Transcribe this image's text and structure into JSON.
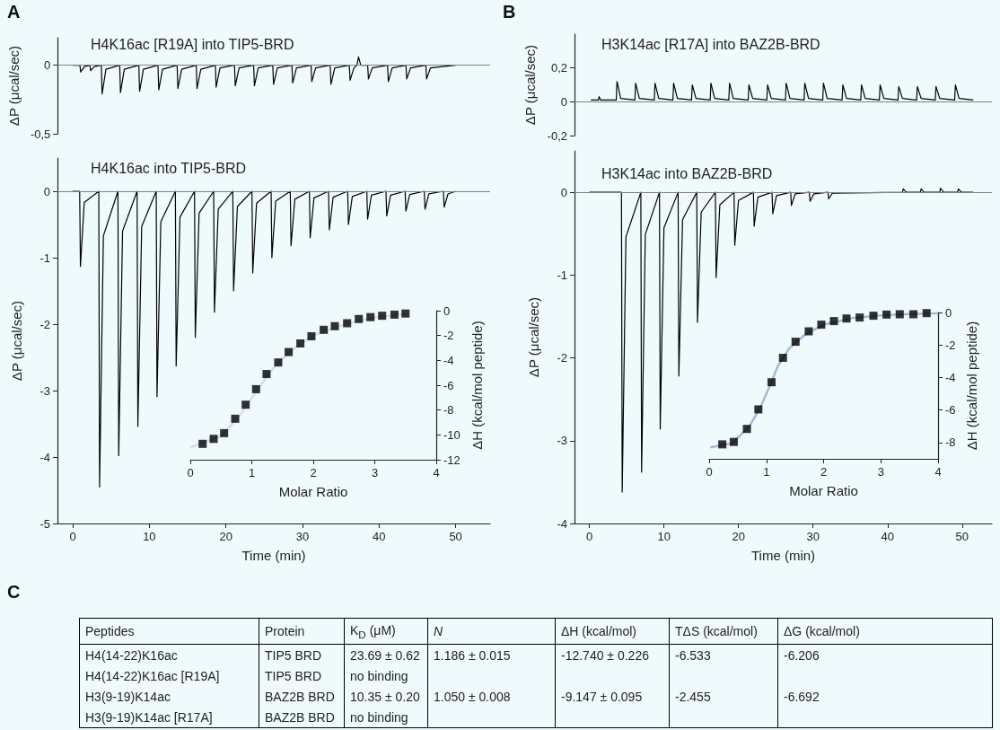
{
  "chart_data": [
    {
      "type": "line",
      "title": "H4K16ac [R19A] into TIP5-BRD",
      "annotations": [
        "A"
      ],
      "ylabel": "ΔP (μcal/sec)",
      "xlim": [
        -2,
        54.5
      ],
      "ylim": [
        -0.5,
        0.2
      ],
      "yticks": [
        {
          "value": -0.5,
          "label": "-0,5"
        },
        0
      ],
      "tick_labels": "y",
      "ref_lines": [
        {
          "axis": "y",
          "value": 0,
          "color": "#808080"
        }
      ],
      "series": [
        {
          "color": "#000000",
          "x": [
            0,
            0.9,
            1,
            1.5,
            2.2,
            2.3,
            2.8,
            3.7,
            3.8,
            4.3,
            6.1,
            6.2,
            6.7,
            8.6,
            8.7,
            9.2,
            11.1,
            11.2,
            11.7,
            13.6,
            13.7,
            14.2,
            16.1,
            16.2,
            16.7,
            18.6,
            18.7,
            19.2,
            21.1,
            21.2,
            21.7,
            23.6,
            23.7,
            24.2,
            26.1,
            26.2,
            26.7,
            28.6,
            28.7,
            29.2,
            31.1,
            31.2,
            31.7,
            33.6,
            33.7,
            34.2,
            36.1,
            36.2,
            36.7,
            37.1,
            37.3,
            37.6,
            38.5,
            38.6,
            39.1,
            41.1,
            41.2,
            41.7,
            43.5,
            43.6,
            44.1,
            46.1,
            46.2,
            46.7,
            50
          ],
          "values": [
            0,
            0,
            -0.05,
            -0.01,
            0,
            -0.04,
            -0.01,
            0,
            -0.21,
            -0.03,
            0,
            -0.2,
            -0.03,
            0,
            -0.19,
            -0.03,
            0,
            -0.18,
            -0.03,
            0,
            -0.17,
            -0.03,
            0,
            -0.17,
            -0.03,
            0,
            -0.16,
            -0.02,
            0,
            -0.15,
            -0.02,
            0,
            -0.15,
            -0.02,
            0,
            -0.14,
            -0.02,
            0,
            -0.13,
            -0.02,
            0,
            -0.12,
            -0.02,
            0,
            -0.14,
            -0.02,
            0,
            -0.11,
            -0.02,
            0,
            0.06,
            0,
            0,
            -0.1,
            -0.02,
            0,
            -0.12,
            -0.02,
            0,
            -0.1,
            -0.02,
            0,
            -0.1,
            -0.02,
            0
          ]
        }
      ]
    },
    {
      "type": "line",
      "title": "H4K16ac into TIP5-BRD",
      "xlabel": "Time (min)",
      "ylabel": "ΔP (μcal/sec)",
      "xlim": [
        -2,
        54.5
      ],
      "xticks": [
        0,
        10,
        20,
        30,
        40,
        50
      ],
      "ylim": [
        -5,
        0.5
      ],
      "yticks": [
        -5,
        -4,
        -3,
        -2,
        -1,
        0
      ],
      "ref_lines": [
        {
          "axis": "y",
          "value": 0,
          "color": "#808080"
        }
      ],
      "series": [
        {
          "color": "#000000",
          "x": [
            0,
            0.9,
            1,
            1.5,
            3.4,
            3.5,
            4,
            5.9,
            6,
            6.5,
            8.4,
            8.5,
            9,
            10.9,
            11,
            11.5,
            13.4,
            13.5,
            14,
            15.9,
            16,
            16.5,
            18.4,
            18.5,
            19,
            20.9,
            21,
            21.5,
            23.4,
            23.5,
            24,
            25.9,
            26,
            26.5,
            28.4,
            28.5,
            29,
            30.9,
            31,
            31.5,
            33.4,
            33.5,
            34,
            35.9,
            36,
            36.5,
            38.4,
            38.5,
            39,
            40.9,
            41,
            41.5,
            43.4,
            43.5,
            44,
            45.9,
            46,
            46.5,
            48.4,
            48.5,
            49,
            50
          ],
          "values": [
            0,
            0,
            -1.13,
            -0.17,
            0,
            -4.45,
            -0.67,
            0,
            -3.98,
            -0.6,
            0,
            -3.54,
            -0.53,
            0,
            -3.09,
            -0.46,
            0,
            -2.63,
            -0.39,
            0,
            -2.2,
            -0.33,
            0,
            -1.82,
            -0.27,
            0,
            -1.5,
            -0.23,
            0,
            -1.23,
            -0.18,
            0,
            -1,
            -0.15,
            0,
            -0.82,
            -0.12,
            0,
            -0.7,
            -0.1,
            0,
            -0.58,
            -0.09,
            0,
            -0.5,
            -0.08,
            0,
            -0.42,
            -0.06,
            0,
            -0.37,
            -0.06,
            0,
            -0.3,
            -0.05,
            0,
            -0.27,
            -0.04,
            0,
            -0.24,
            -0.04,
            0
          ]
        }
      ]
    },
    {
      "type": "scatter",
      "xlabel": "Molar Ratio",
      "ylabel": "ΔH (kcal/mol peptide)",
      "xlim": [
        0,
        4
      ],
      "xticks": [
        0,
        1,
        2,
        3,
        4
      ],
      "ylim": [
        -12,
        0
      ],
      "yticks": [
        -12,
        -10,
        -8,
        -6,
        -4,
        -2,
        0
      ],
      "series": [
        {
          "color": "#000000",
          "marker": "square",
          "x": [
            0.2,
            0.38,
            0.55,
            0.73,
            0.9,
            1.07,
            1.24,
            1.43,
            1.6,
            1.79,
            1.97,
            2.17,
            2.35,
            2.55,
            2.74,
            2.93,
            3.12,
            3.32,
            3.5
          ],
          "values": [
            -10.72,
            -10.32,
            -9.86,
            -8.7,
            -7.57,
            -6.32,
            -5.1,
            -4.17,
            -3.33,
            -2.64,
            -2.06,
            -1.54,
            -1.25,
            -1.01,
            -0.67,
            -0.52,
            -0.41,
            -0.32,
            -0.23
          ]
        },
        {
          "type": "line",
          "color": "#d0def2",
          "x": [
            0,
            0.5,
            0.8,
            1.1,
            1.4,
            1.7,
            2,
            2.5,
            3,
            3.5
          ],
          "values": [
            -11,
            -10.1,
            -8.5,
            -6.3,
            -4.3,
            -3,
            -2,
            -1.1,
            -0.55,
            -0.25
          ]
        }
      ]
    },
    {
      "type": "line",
      "title": "H3K14ac [R17A] into BAZ2B-BRD",
      "annotations": [
        "B"
      ],
      "ylabel": "ΔP (μcal/sec)",
      "xlim": [
        -2,
        54
      ],
      "ylim": [
        -0.2,
        0.4
      ],
      "yticks": [
        {
          "value": -0.2,
          "label": "-0,2"
        },
        0,
        {
          "value": 0.2,
          "label": "0,2"
        }
      ],
      "tick_labels": "y",
      "ref_lines": [
        {
          "axis": "y",
          "value": 0,
          "color": "#808080"
        }
      ],
      "series": [
        {
          "color": "#000000",
          "x": [
            0.2,
            1.2,
            1.3,
            1.5,
            3.6,
            3.7,
            4.2,
            6.1,
            6.2,
            6.7,
            8.7,
            8.8,
            9.3,
            11.2,
            11.3,
            11.8,
            13.7,
            13.8,
            14.3,
            16.2,
            16.3,
            16.8,
            18.7,
            18.8,
            19.3,
            21.3,
            21.4,
            21.9,
            23.8,
            23.9,
            24.4,
            26.3,
            26.4,
            26.9,
            28.8,
            28.9,
            29.4,
            31.3,
            31.4,
            31.9,
            33.9,
            34,
            34.5,
            36.4,
            36.5,
            37,
            38.9,
            39,
            39.5,
            41.4,
            41.5,
            42,
            43.9,
            44,
            44.5,
            46.4,
            46.5,
            47,
            49,
            49.1,
            49.6,
            51.5
          ],
          "values": [
            0.01,
            0.01,
            0.03,
            0.01,
            0.01,
            0.12,
            0.02,
            0.01,
            0.11,
            0.02,
            0.01,
            0.11,
            0.02,
            0.01,
            0.11,
            0.02,
            0.01,
            0.1,
            0.02,
            0.01,
            0.11,
            0.02,
            0.01,
            0.11,
            0.02,
            0.01,
            0.1,
            0.02,
            0.01,
            0.1,
            0.02,
            0.01,
            0.11,
            0.02,
            0.01,
            0.11,
            0.02,
            0.01,
            0.11,
            0.02,
            0.01,
            0.1,
            0.02,
            0.01,
            0.1,
            0.02,
            0.01,
            0.1,
            0.02,
            0.01,
            0.09,
            0.02,
            0.01,
            0.09,
            0.02,
            0.01,
            0.09,
            0.02,
            0.01,
            0.1,
            0.02,
            0.01
          ]
        }
      ]
    },
    {
      "type": "line",
      "title": "H3K14ac into BAZ2B-BRD",
      "xlabel": "Time (min)",
      "ylabel": "ΔP (μcal/sec)",
      "xlim": [
        -2,
        54
      ],
      "xticks": [
        0,
        10,
        20,
        30,
        40,
        50
      ],
      "ylim": [
        -4,
        0.5
      ],
      "yticks": [
        -4,
        -3,
        -2,
        -1,
        0
      ],
      "ref_lines": [
        {
          "axis": "y",
          "value": 0,
          "color": "#808080"
        }
      ],
      "series": [
        {
          "color": "#000000",
          "x": [
            0,
            4.3,
            4.4,
            4.9,
            6.9,
            7,
            7.5,
            9.4,
            9.5,
            10,
            11.9,
            12,
            12.5,
            14.4,
            14.5,
            15,
            16.9,
            17,
            17.5,
            19.4,
            19.5,
            20,
            22,
            22.1,
            22.6,
            24.5,
            24.6,
            25.1,
            27,
            27.1,
            27.6,
            29.5,
            29.6,
            30.1,
            32,
            32.1,
            32.6,
            42,
            42.1,
            42.5,
            44.4,
            44.5,
            44.9,
            47,
            47.1,
            47.5,
            49.4,
            49.5,
            49.9,
            51.5
          ],
          "values": [
            0,
            0,
            -3.62,
            -0.54,
            0,
            -3.38,
            -0.51,
            0,
            -2.86,
            -0.43,
            0,
            -2.22,
            -0.33,
            0,
            -1.57,
            -0.24,
            0,
            -1.03,
            -0.15,
            0,
            -0.64,
            -0.1,
            0,
            -0.41,
            -0.06,
            0,
            -0.26,
            -0.04,
            0,
            -0.16,
            -0.02,
            0,
            -0.11,
            -0.02,
            0,
            -0.08,
            -0.01,
            0,
            0.04,
            0,
            0,
            0.04,
            0,
            0,
            0.05,
            0,
            0,
            0.04,
            0,
            0
          ]
        }
      ]
    },
    {
      "type": "scatter",
      "xlabel": "Molar Ratio",
      "ylabel": "ΔH (kcal/mol peptide)",
      "xlim": [
        0,
        4
      ],
      "xticks": [
        0,
        1,
        2,
        3,
        4
      ],
      "ylim": [
        -9,
        0
      ],
      "yticks": [
        -8,
        -6,
        -4,
        -2,
        0
      ],
      "series": [
        {
          "color": "#000000",
          "marker": "square",
          "x": [
            0.23,
            0.43,
            0.66,
            0.86,
            1.09,
            1.29,
            1.51,
            1.74,
            1.96,
            2.18,
            2.4,
            2.63,
            2.87,
            3.1,
            3.33,
            3.57,
            3.8
          ],
          "values": [
            -8.11,
            -7.96,
            -7.16,
            -5.96,
            -4.29,
            -2.79,
            -1.8,
            -1.16,
            -0.75,
            -0.53,
            -0.37,
            -0.31,
            -0.2,
            -0.13,
            -0.11,
            -0.11,
            -0.04
          ]
        },
        {
          "type": "line",
          "color": "#a8b8d8",
          "x": [
            0.02,
            0.4,
            0.7,
            0.9,
            1.05,
            1.2,
            1.4,
            1.7,
            2,
            2.5,
            3,
            3.5,
            4
          ],
          "values": [
            -8.3,
            -8.05,
            -7,
            -5.8,
            -4.6,
            -3.3,
            -2.2,
            -1.3,
            -0.75,
            -0.35,
            -0.18,
            -0.1,
            -0.05
          ]
        }
      ]
    },
    {
      "type": "other",
      "title": "C",
      "categories": [
        "Peptides",
        "Protein",
        "K$_{D}$ (μM)",
        "N",
        "ΔH (kcal/mol)",
        "TΔS (kcal/mol)",
        "ΔG (kcal/mol)"
      ],
      "cell_labels": [
        [
          "H4(14-22)K16ac",
          "TIP5 BRD",
          "23.69 ± 0.62",
          "1.186 ± 0.015",
          "-12.740 ± 0.226",
          "-6.533",
          "-6.206"
        ],
        [
          "H4(14-22)K16ac [R19A]",
          "TIP5 BRD",
          "no binding",
          null,
          null,
          null,
          null
        ],
        [
          "H3(9-19)K14ac",
          "BAZ2B BRD",
          "10.35 ± 0.20",
          "1.050 ± 0.008",
          "-9.147 ± 0.095",
          "-2.455",
          "-6.692"
        ],
        [
          "H3(9-19)K14ac [R17A]",
          "BAZ2B BRD",
          "no binding",
          null,
          null,
          null,
          null
        ]
      ]
    }
  ]
}
